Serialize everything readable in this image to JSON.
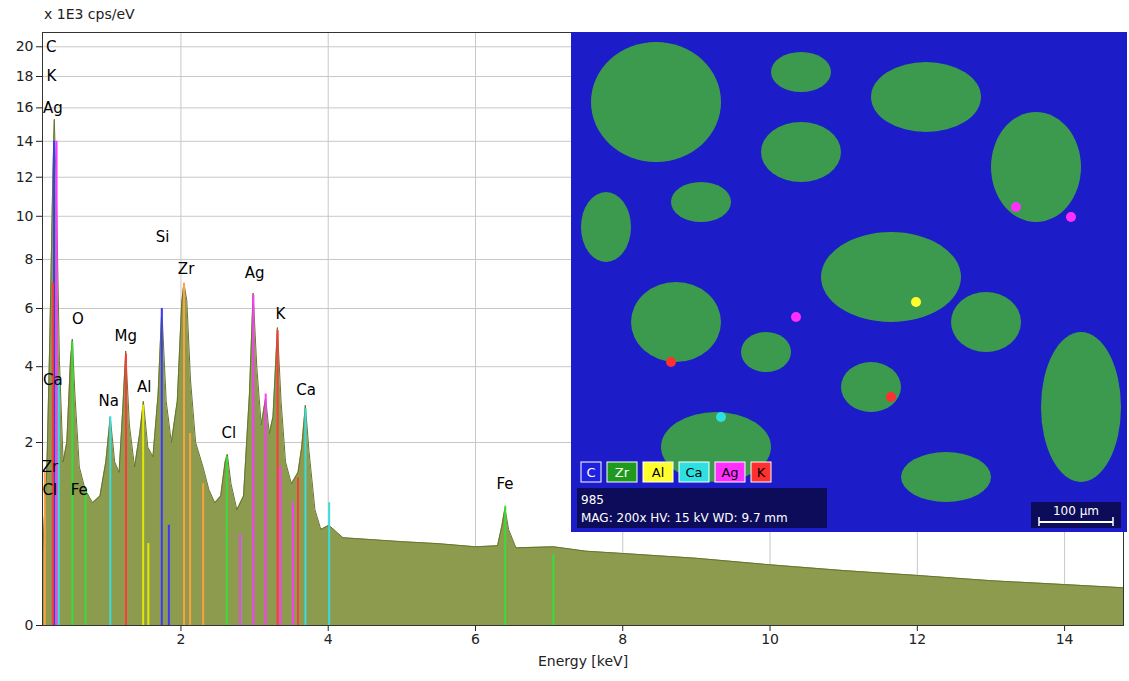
{
  "chart_data": {
    "type": "area",
    "x_label": "Energy [keV]",
    "y_label": "x 1E3 cps/eV",
    "xlim": [
      0.12,
      14.8
    ],
    "ylim": [
      0,
      21
    ],
    "xticks": [
      2,
      4,
      6,
      8,
      10,
      12,
      14
    ],
    "yticks": [
      0,
      2,
      4,
      6,
      8,
      10,
      12,
      14,
      16,
      18,
      20
    ],
    "grid": true,
    "color": "#8c9b4e",
    "x": [
      0.12,
      0.18,
      0.22,
      0.26,
      0.28,
      0.31,
      0.35,
      0.4,
      0.45,
      0.5,
      0.525,
      0.56,
      0.62,
      0.7,
      0.8,
      0.9,
      0.98,
      1.04,
      1.1,
      1.16,
      1.21,
      1.25,
      1.3,
      1.37,
      1.44,
      1.49,
      1.55,
      1.62,
      1.69,
      1.74,
      1.8,
      1.87,
      1.95,
      2.01,
      2.04,
      2.08,
      2.13,
      2.2,
      2.3,
      2.38,
      2.46,
      2.54,
      2.6,
      2.63,
      2.68,
      2.76,
      2.85,
      2.93,
      2.98,
      3.03,
      3.09,
      3.15,
      3.2,
      3.25,
      3.31,
      3.36,
      3.42,
      3.5,
      3.59,
      3.64,
      3.69,
      3.74,
      3.82,
      3.9,
      4.01,
      4.2,
      4.6,
      5.0,
      5.5,
      6.0,
      6.3,
      6.36,
      6.4,
      6.45,
      6.55,
      7.06,
      7.5,
      8,
      9,
      10,
      11,
      12,
      13,
      14,
      14.8
    ],
    "values": [
      0.3,
      1.5,
      5,
      12,
      15.3,
      11,
      4.2,
      1.6,
      2,
      4.2,
      4.9,
      3.2,
      1.5,
      1.1,
      0.9,
      1.0,
      1.6,
      2.6,
      1.6,
      1.4,
      2.8,
      4.5,
      2.4,
      1.5,
      2.2,
      3.0,
      1.9,
      1.7,
      3.2,
      6.0,
      3.0,
      2.0,
      3.0,
      6.2,
      7.0,
      6.3,
      3.6,
      2.0,
      1.5,
      1.1,
      0.9,
      1.0,
      1.6,
      1.75,
      1.2,
      0.8,
      1.0,
      3.2,
      6.6,
      4.0,
      2.4,
      3.1,
      2.2,
      2.6,
      5.3,
      3.0,
      1.6,
      1.2,
      1.4,
      1.9,
      2.9,
      1.8,
      0.8,
      0.55,
      0.6,
      0.46,
      0.44,
      0.42,
      0.4,
      0.37,
      0.38,
      0.6,
      0.82,
      0.55,
      0.36,
      0.37,
      0.33,
      0.31,
      0.27,
      0.22,
      0.18,
      0.15,
      0.12,
      0.1,
      0.085
    ],
    "element_lines": [
      {
        "color": "#3a3aff",
        "energies": [
          0.277
        ],
        "heights": [
          14
        ]
      },
      {
        "color": "#3adc3a",
        "energies": [
          0.525
        ],
        "heights": [
          4.8
        ]
      },
      {
        "color": "#3adcdc",
        "energies": [
          1.041
        ],
        "heights": [
          2.6
        ]
      },
      {
        "color": "#ff3a3a",
        "energies": [
          1.254
        ],
        "heights": [
          4.4
        ]
      },
      {
        "color": "#e6e600",
        "energies": [
          1.487,
          1.557
        ],
        "heights": [
          2.9,
          0.4
        ]
      },
      {
        "color": "#3a3aff",
        "energies": [
          1.74,
          1.836
        ],
        "heights": [
          6,
          0.6
        ]
      },
      {
        "color": "#ffa040",
        "energies": [
          2.042,
          2.124,
          2.302,
          0.151
        ],
        "heights": [
          7,
          2.2,
          1.2,
          1.4
        ]
      },
      {
        "color": "#3adc3a",
        "energies": [
          2.622,
          2.816
        ],
        "heights": [
          1.7,
          0.5
        ]
      },
      {
        "color": "#ff3aff",
        "energies": [
          2.984,
          3.151,
          3.348,
          3.52,
          2.806,
          0.311
        ],
        "heights": [
          6.5,
          3.2,
          1.5,
          0.9,
          0.5,
          14
        ]
      },
      {
        "color": "#ff3a3a",
        "energies": [
          3.313,
          3.59,
          0.26
        ],
        "heights": [
          5.2,
          1.3,
          7
        ]
      },
      {
        "color": "#3adcdc",
        "energies": [
          3.691,
          4.013,
          0.341
        ],
        "heights": [
          2.8,
          0.9,
          3.6
        ]
      },
      {
        "color": "#3adc3a",
        "energies": [
          6.404,
          7.058,
          0.705
        ],
        "heights": [
          0.85,
          0.3,
          1.1
        ]
      }
    ],
    "annotations": [
      {
        "text": "C",
        "x": 0.24,
        "y": 20,
        "color": "#4a4aff"
      },
      {
        "text": "K",
        "x": 0.24,
        "y": 18,
        "color": "#ff4a4a"
      },
      {
        "text": "Ag",
        "x": 0.26,
        "y": 16,
        "color": "#ff4aff"
      },
      {
        "text": "O",
        "x": 0.6,
        "y": 5.6,
        "color": "#4ae04a"
      },
      {
        "text": "Ca",
        "x": 0.26,
        "y": 3.6,
        "color": "#4ae0e0"
      },
      {
        "text": "Zr",
        "x": 0.22,
        "y": 1.5,
        "color": "#ffa040"
      },
      {
        "text": "Cl",
        "x": 0.22,
        "y": 1.1,
        "color": "#4ae04a"
      },
      {
        "text": "Fe",
        "x": 0.62,
        "y": 1.1,
        "color": "#4ae04a"
      },
      {
        "text": "Si",
        "x": 1.75,
        "y": 9,
        "color": "#4a4aff"
      },
      {
        "text": "Zr",
        "x": 2.07,
        "y": 7.6,
        "color": "#ffa040"
      },
      {
        "text": "Mg",
        "x": 1.25,
        "y": 5,
        "color": "#ff4a4a"
      },
      {
        "text": "Na",
        "x": 1.02,
        "y": 3,
        "color": "#4ae0e0"
      },
      {
        "text": "Al",
        "x": 1.5,
        "y": 3.4,
        "color": "#ffff4a"
      },
      {
        "text": "Ag",
        "x": 3.0,
        "y": 7.4,
        "color": "#ff4aff"
      },
      {
        "text": "K",
        "x": 3.35,
        "y": 5.8,
        "color": "#ff4a4a"
      },
      {
        "text": "Ca",
        "x": 3.7,
        "y": 3.3,
        "color": "#4ae0e0"
      },
      {
        "text": "Cl",
        "x": 2.65,
        "y": 2.2,
        "color": "#4ae04a"
      },
      {
        "text": "Fe",
        "x": 6.4,
        "y": 1.2,
        "color": "#4ae04a"
      }
    ]
  },
  "inset": {
    "legend": [
      {
        "label": "C",
        "color": "#2020e0"
      },
      {
        "label": "Zr",
        "color": "#1f9a1f"
      },
      {
        "label": "Al",
        "color": "#ffff30"
      },
      {
        "label": "Ca",
        "color": "#30e0e0"
      },
      {
        "label": "Ag",
        "color": "#ff30ff"
      },
      {
        "label": "K",
        "color": "#ff3030"
      }
    ],
    "id": "985",
    "caption": "MAG: 200x   HV: 15 kV   WD: 9.7 mm",
    "scale_bar": "100 µm"
  }
}
